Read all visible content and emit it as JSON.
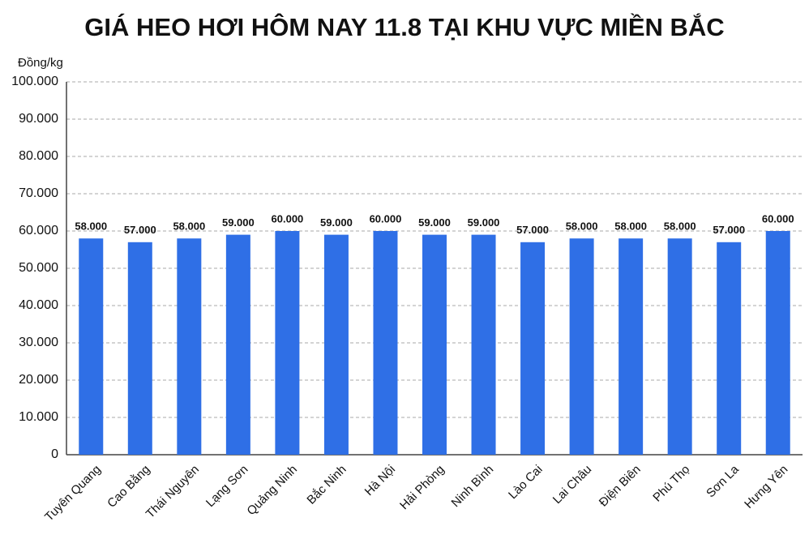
{
  "chart_data": {
    "type": "bar",
    "title": "GIÁ HEO HƠI HÔM NAY 11.8 TẠI KHU VỰC MIỀN BẮC",
    "y_label": "Đồng/kg",
    "categories": [
      "Tuyên Quang",
      "Cao Bằng",
      "Thái Nguyên",
      "Lạng Sơn",
      "Quảng Ninh",
      "Bắc Ninh",
      "Hà Nội",
      "Hải Phòng",
      "Ninh Bình",
      "Lào Cai",
      "Lai Châu",
      "Điện Biên",
      "Phú Thọ",
      "Sơn La",
      "Hưng Yên"
    ],
    "values": [
      58000,
      57000,
      58000,
      59000,
      60000,
      59000,
      60000,
      59000,
      59000,
      57000,
      58000,
      58000,
      58000,
      57000,
      60000
    ],
    "value_labels": [
      "58.000",
      "57.000",
      "58.000",
      "59.000",
      "60.000",
      "59.000",
      "60.000",
      "59.000",
      "59.000",
      "57.000",
      "58.000",
      "58.000",
      "58.000",
      "57.000",
      "60.000"
    ],
    "color": "#2f6fe6",
    "ylim": [
      0,
      100000
    ],
    "yticks": [
      0,
      {
        "value": 10000,
        "label": "10.000"
      },
      {
        "value": 20000,
        "label": "20.000"
      },
      {
        "value": 30000,
        "label": "30.000"
      },
      {
        "value": 40000,
        "label": "40.000"
      },
      {
        "value": 50000,
        "label": "50.000"
      },
      {
        "value": 60000,
        "label": "60.000"
      },
      {
        "value": 70000,
        "label": "70.000"
      },
      {
        "value": 80000,
        "label": "80.000"
      },
      {
        "value": 90000,
        "label": "90.000"
      },
      {
        "value": 100000,
        "label": "100.000"
      }
    ],
    "grid": true
  }
}
